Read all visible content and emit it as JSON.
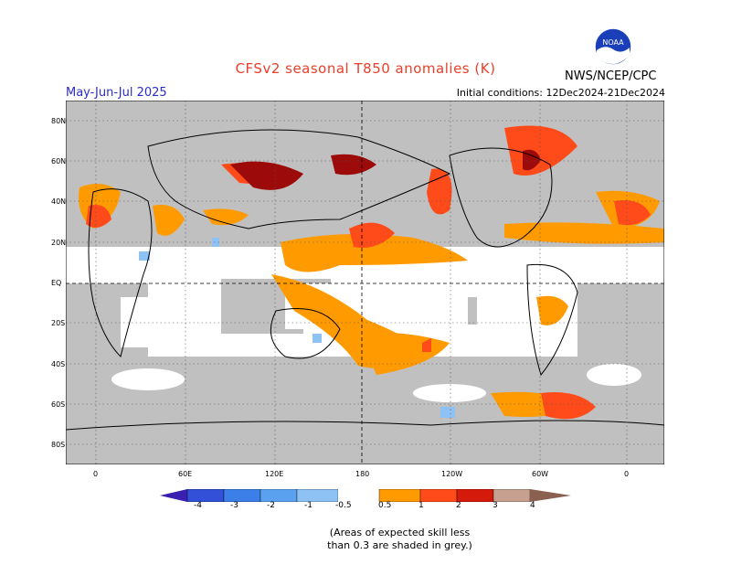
{
  "title": "CFSv2 seasonal T850 anomalies (K)",
  "season": "May-Jun-Jul 2025",
  "initial_conditions": "Initial conditions: 12Dec2024-21Dec2024",
  "agency": "NWS/NCEP/CPC",
  "logo_text": "NOAA",
  "lat_labels": [
    "80N",
    "60N",
    "40N",
    "20N",
    "EQ",
    "20S",
    "40S",
    "60S",
    "80S"
  ],
  "lon_labels": [
    "0",
    "60E",
    "120E",
    "180",
    "120W",
    "60W",
    "0"
  ],
  "colorbar": {
    "labels": [
      "-4",
      "-3",
      "-2",
      "-1",
      "-0.5",
      "0.5",
      "1",
      "2",
      "3",
      "4"
    ],
    "colors": [
      "#3a1fb0",
      "#3350d8",
      "#3d7fe8",
      "#5aa2f0",
      "#8ec2f5",
      "#ffffff",
      "#ff9a00",
      "#ff4a1a",
      "#d41a0a",
      "#9c0a0a",
      "#c8a090",
      "#8a6050"
    ]
  },
  "note_line1": "(Areas of expected skill less",
  "note_line2": "than 0.3 are shaded in grey.)",
  "colors": {
    "grey": "#c0c0c0",
    "orange": "#ff9a00",
    "red": "#ff4a1a",
    "darkred": "#9c0a0a",
    "lightblue": "#8ec2f5"
  }
}
